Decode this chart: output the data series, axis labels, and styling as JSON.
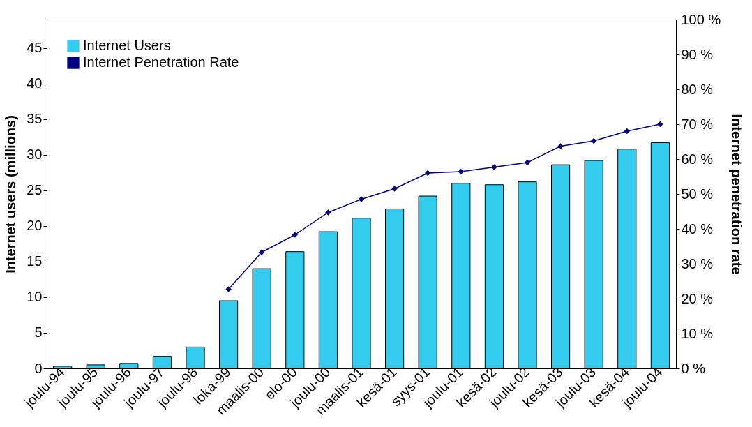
{
  "chart_data": {
    "type": "bar",
    "categories": [
      "joulu-94",
      "joulu-95",
      "joulu-96",
      "joulu-97",
      "joulu-98",
      "loka-99",
      "maalis-00",
      "elo-00",
      "joulu-00",
      "maalis-01",
      "kesä-01",
      "syys-01",
      "joulu-01",
      "kesä-02",
      "joulu-02",
      "kesä-03",
      "joulu-03",
      "kesä-04",
      "joulu-04"
    ],
    "series": [
      {
        "name": "Internet Users",
        "color": "#33ccee",
        "values": [
          0.3,
          0.5,
          0.7,
          1.7,
          3.0,
          9.5,
          14.0,
          16.4,
          19.2,
          21.1,
          22.4,
          24.2,
          26.0,
          25.8,
          26.2,
          28.6,
          29.2,
          30.8,
          31.7
        ]
      },
      {
        "name": "Internet Penetration Rate",
        "type": "line",
        "axis": "y2",
        "marker": "diamond",
        "line_style": "solid",
        "color": "#000080",
        "values": [
          null,
          null,
          null,
          null,
          null,
          22.7,
          33.3,
          38.3,
          44.7,
          48.5,
          51.5,
          56.0,
          56.4,
          57.7,
          59.0,
          63.7,
          65.2,
          68.0,
          70.0
        ]
      }
    ],
    "ylabel": "Internet users (millions)",
    "y2label": "Internet penetration rate",
    "ylim": [
      0,
      49
    ],
    "yticks": [
      0,
      5,
      10,
      15,
      20,
      25,
      30,
      35,
      40,
      45
    ],
    "y2lim": [
      0,
      100
    ],
    "y2ticks": [
      {
        "value": 0,
        "label": "0 %"
      },
      {
        "value": 10,
        "label": "10 %"
      },
      {
        "value": 20,
        "label": "20 %"
      },
      {
        "value": 30,
        "label": "30 %"
      },
      {
        "value": 40,
        "label": "40 %"
      },
      {
        "value": 50,
        "label": "50 %"
      },
      {
        "value": 60,
        "label": "60 %"
      },
      {
        "value": 70,
        "label": "70 %"
      },
      {
        "value": 80,
        "label": "80 %"
      },
      {
        "value": 90,
        "label": "90 %"
      },
      {
        "value": 100,
        "label": "100 %"
      }
    ],
    "legend": "top left",
    "grid": false
  }
}
